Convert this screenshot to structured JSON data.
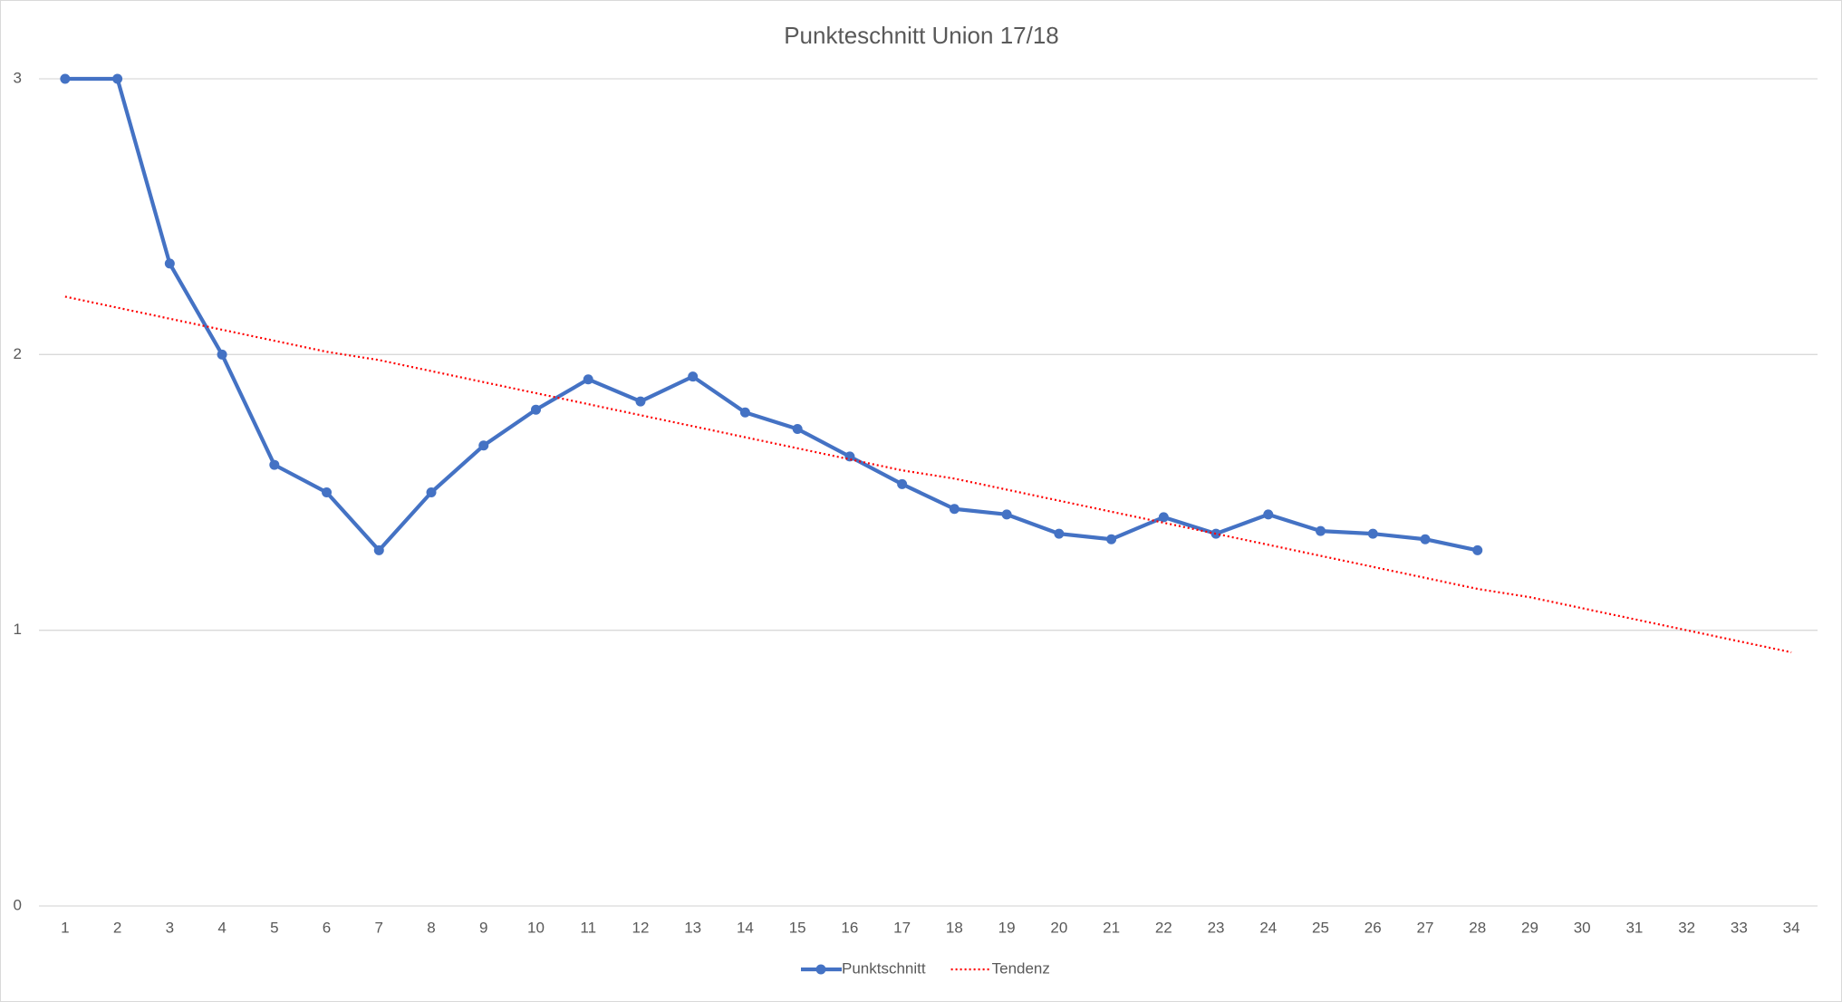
{
  "chart_data": {
    "type": "line",
    "title": "Punkteschnitt Union 17/18",
    "categories": [
      "1",
      "2",
      "3",
      "4",
      "5",
      "6",
      "7",
      "8",
      "9",
      "10",
      "11",
      "12",
      "13",
      "14",
      "15",
      "16",
      "17",
      "18",
      "19",
      "20",
      "21",
      "22",
      "23",
      "24",
      "25",
      "26",
      "27",
      "28",
      "29",
      "30",
      "31",
      "32",
      "33",
      "34"
    ],
    "series": [
      {
        "name": "Punktschnitt",
        "color": "#4472c4",
        "style": "solid",
        "marker": true,
        "values": [
          3,
          3,
          2.33,
          2,
          1.6,
          1.5,
          1.29,
          1.5,
          1.67,
          1.8,
          1.91,
          1.83,
          1.92,
          1.79,
          1.73,
          1.63,
          1.53,
          1.44,
          1.42,
          1.35,
          1.33,
          1.41,
          1.35,
          1.42,
          1.36,
          1.35,
          1.33,
          1.29,
          null,
          null,
          null,
          null,
          null,
          null
        ]
      },
      {
        "name": "Tendenz",
        "color": "#ff0000",
        "style": "dotted",
        "marker": false,
        "values": [
          2.21,
          2.17,
          2.13,
          2.09,
          2.05,
          2.01,
          1.98,
          1.94,
          1.9,
          1.86,
          1.82,
          1.78,
          1.74,
          1.7,
          1.66,
          1.62,
          1.58,
          1.55,
          1.51,
          1.47,
          1.43,
          1.39,
          1.35,
          1.31,
          1.27,
          1.23,
          1.19,
          1.15,
          1.12,
          1.08,
          1.04,
          1.0,
          0.96,
          0.92
        ]
      }
    ],
    "ylim": [
      0,
      3
    ],
    "yticks": [
      0,
      1,
      2,
      3
    ],
    "grid": true,
    "legend": "bottom"
  }
}
